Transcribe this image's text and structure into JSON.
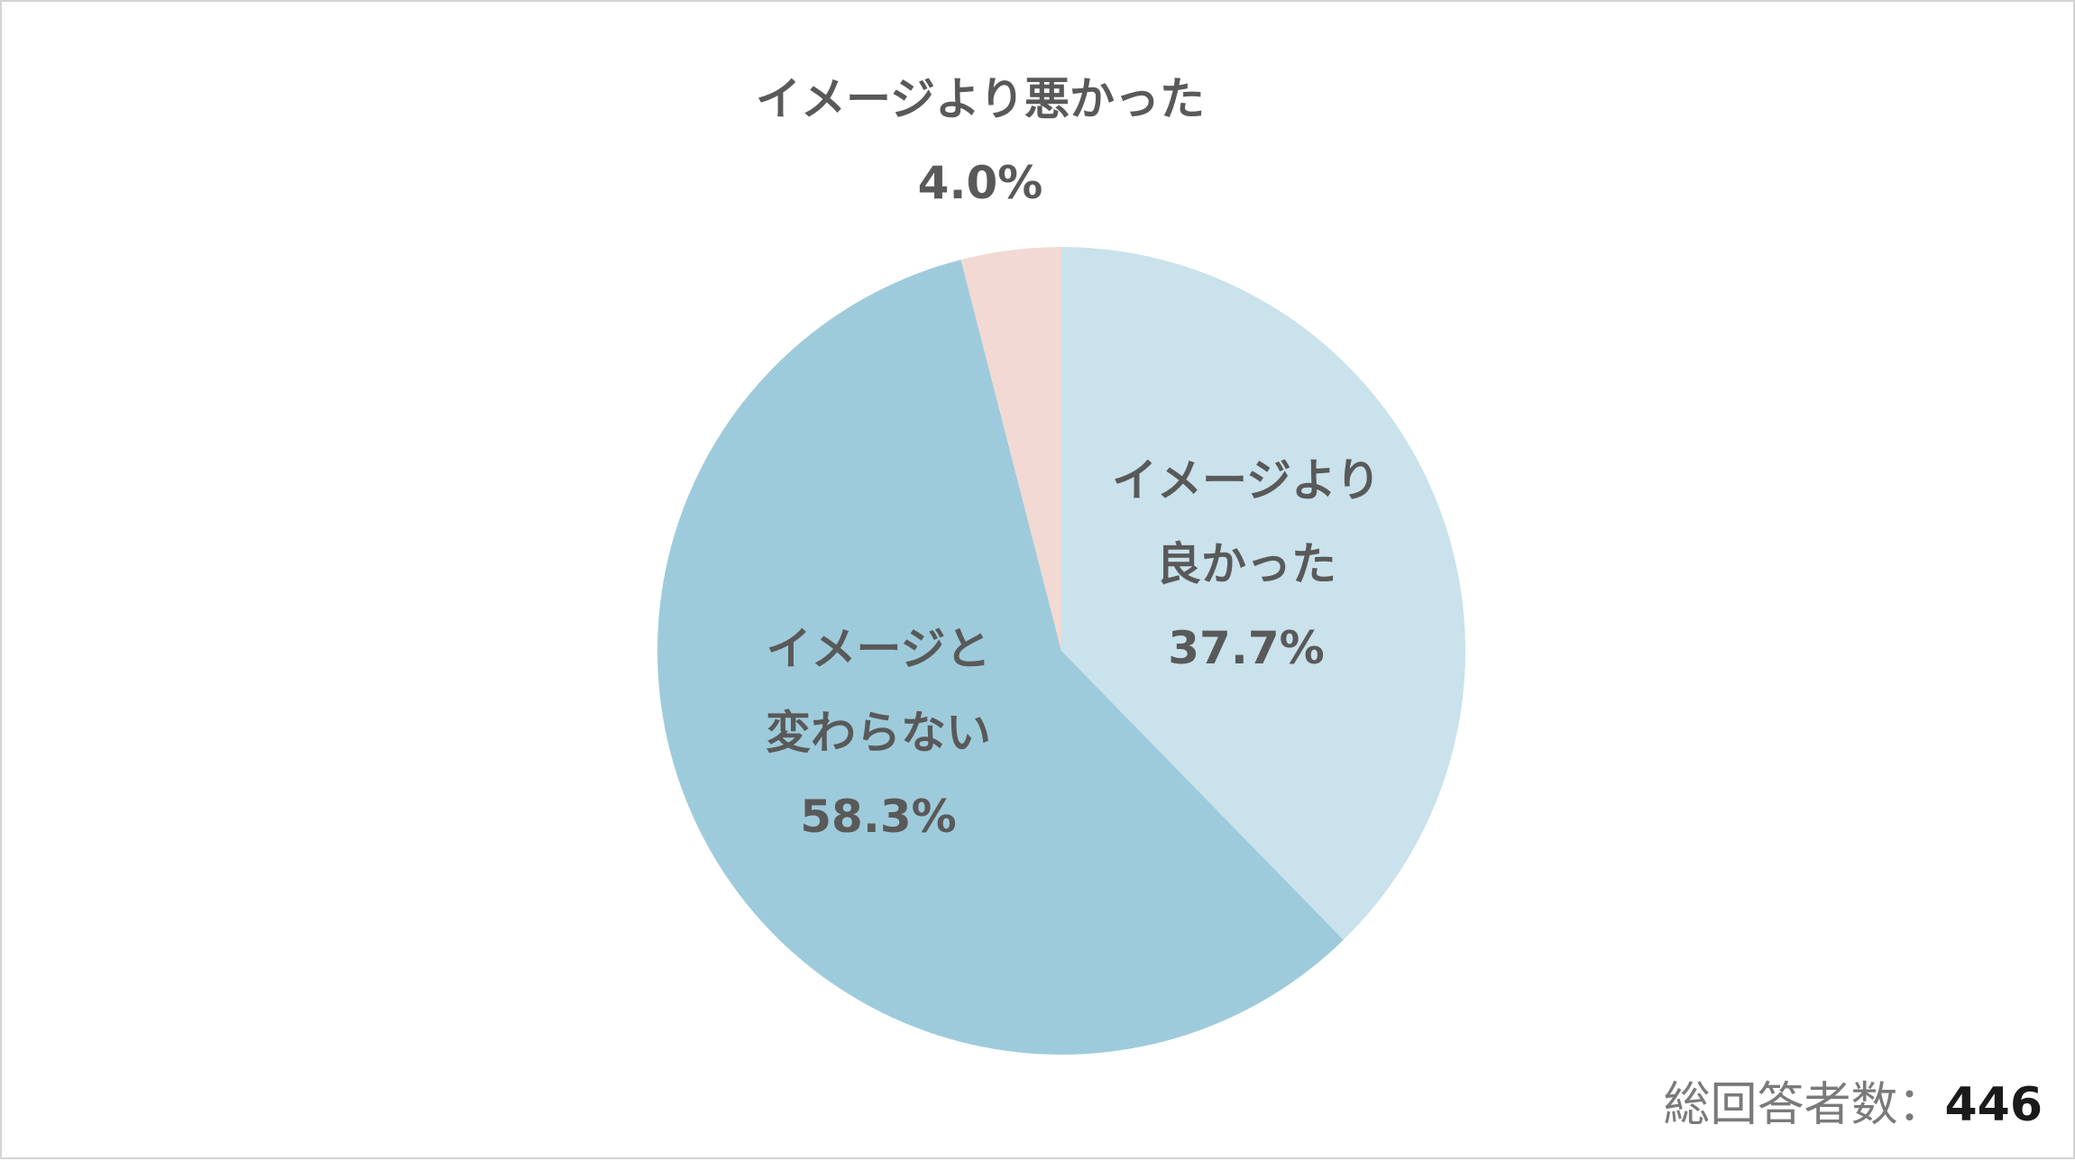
{
  "chart_data": {
    "type": "pie",
    "start_angle": "12 o'clock, clockwise",
    "slices": [
      {
        "label_lines": [
          "イメージより",
          "良かった"
        ],
        "percent_text": "37.7%",
        "value": 37.7,
        "color": "#c9e2eb"
      },
      {
        "label_lines": [
          "イメージと",
          "変わらない"
        ],
        "percent_text": "58.3%",
        "value": 58.3,
        "color": "#9ecbdb"
      },
      {
        "label_lines": [
          "イメージより悪かった"
        ],
        "percent_text": "4.0%",
        "value": 4.0,
        "color": "#f2d9d3"
      }
    ]
  },
  "footer": {
    "respondents_label": "総回答者数：",
    "respondents_count": "446"
  }
}
